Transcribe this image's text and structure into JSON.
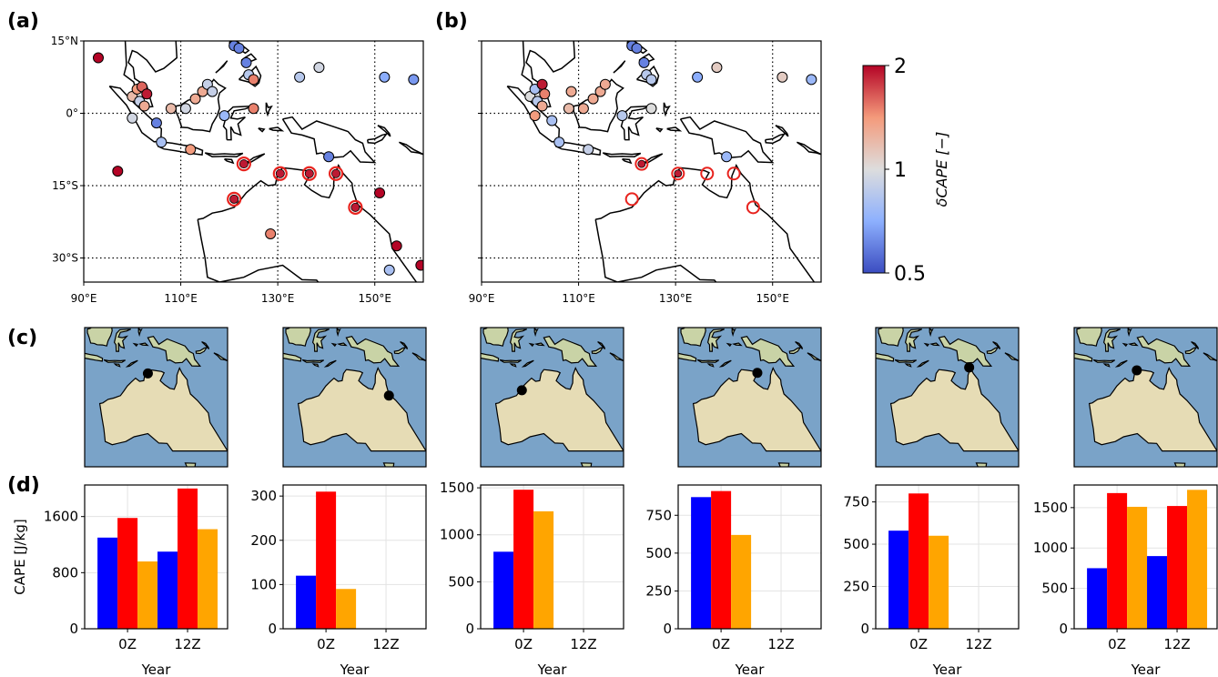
{
  "panel_labels": {
    "a": "(a)",
    "b": "(b)",
    "c": "(c)",
    "d": "(d)"
  },
  "colors": {
    "series": [
      "#0000ff",
      "#ff0000",
      "#ffa500"
    ],
    "ring": "#e8231e",
    "ocean": "#7aa3c8",
    "land": "#e6dcb5"
  },
  "colorbar": {
    "label": "δCAPE [−]",
    "ticks": [
      "2",
      "1",
      "0.5"
    ],
    "range": [
      0.5,
      2
    ],
    "colormap": "coolwarm"
  },
  "maps": {
    "lon_ticks": [
      "90°E",
      "110°E",
      "130°E",
      "150°E"
    ],
    "lat_ticks": [
      "15°N",
      "0°",
      "15°S",
      "30°S"
    ],
    "lon_range": [
      90,
      160
    ],
    "lat_range": [
      -35,
      15
    ],
    "a_points": [
      {
        "lon": 93,
        "lat": 11.5,
        "v": 2.0
      },
      {
        "lon": 100,
        "lat": 3.5,
        "v": 1.2
      },
      {
        "lon": 101,
        "lat": 5,
        "v": 1.4
      },
      {
        "lon": 102,
        "lat": 5.5,
        "v": 1.6
      },
      {
        "lon": 103,
        "lat": 4,
        "v": 1.9
      },
      {
        "lon": 101.5,
        "lat": 2.5,
        "v": 0.9
      },
      {
        "lon": 102.5,
        "lat": 1.5,
        "v": 1.3
      },
      {
        "lon": 100,
        "lat": -1,
        "v": 0.95
      },
      {
        "lon": 105,
        "lat": -2,
        "v": 0.6
      },
      {
        "lon": 106,
        "lat": -6,
        "v": 0.8
      },
      {
        "lon": 108,
        "lat": 1,
        "v": 1.2
      },
      {
        "lon": 112,
        "lat": -7.5,
        "v": 1.4
      },
      {
        "lon": 111,
        "lat": 1,
        "v": 0.95
      },
      {
        "lon": 113,
        "lat": 3,
        "v": 1.3
      },
      {
        "lon": 114.5,
        "lat": 4.5,
        "v": 1.3
      },
      {
        "lon": 115.5,
        "lat": 6,
        "v": 0.9
      },
      {
        "lon": 116.5,
        "lat": 4.5,
        "v": 0.9
      },
      {
        "lon": 119,
        "lat": -0.5,
        "v": 0.75
      },
      {
        "lon": 121,
        "lat": 14,
        "v": 0.6
      },
      {
        "lon": 122,
        "lat": 13.5,
        "v": 0.6
      },
      {
        "lon": 123.5,
        "lat": 10.5,
        "v": 0.6
      },
      {
        "lon": 124,
        "lat": 8,
        "v": 0.85
      },
      {
        "lon": 125,
        "lat": 7,
        "v": 1.5
      },
      {
        "lon": 125,
        "lat": 1,
        "v": 1.5
      },
      {
        "lon": 134.5,
        "lat": 7.5,
        "v": 0.85
      },
      {
        "lon": 138.5,
        "lat": 9.5,
        "v": 0.95
      },
      {
        "lon": 152,
        "lat": 7.5,
        "v": 0.7
      },
      {
        "lon": 158,
        "lat": 7,
        "v": 0.65
      },
      {
        "lon": 140.5,
        "lat": -9,
        "v": 0.6
      },
      {
        "lon": 97,
        "lat": -12,
        "v": 2.0
      },
      {
        "lon": 123,
        "lat": -10.5,
        "v": 1.9,
        "ring": true
      },
      {
        "lon": 130.5,
        "lat": -12.5,
        "v": 1.9,
        "ring": true
      },
      {
        "lon": 136.5,
        "lat": -12.5,
        "v": 1.9,
        "ring": true
      },
      {
        "lon": 142,
        "lat": -12.5,
        "v": 1.9,
        "ring": true
      },
      {
        "lon": 121,
        "lat": -17.8,
        "v": 1.9,
        "ring": true
      },
      {
        "lon": 146,
        "lat": -19.5,
        "v": 1.9,
        "ring": true
      },
      {
        "lon": 151,
        "lat": -16.5,
        "v": 2.0
      },
      {
        "lon": 128.5,
        "lat": -25,
        "v": 1.5
      },
      {
        "lon": 154.5,
        "lat": -27.5,
        "v": 2.0
      },
      {
        "lon": 153,
        "lat": -32.5,
        "v": 0.8
      },
      {
        "lon": 159.5,
        "lat": -31.5,
        "v": 2.0
      }
    ],
    "b_points": [
      {
        "lon": 100,
        "lat": 3.5,
        "v": 1.0
      },
      {
        "lon": 101,
        "lat": 5,
        "v": 0.8
      },
      {
        "lon": 102.5,
        "lat": 6,
        "v": 1.9
      },
      {
        "lon": 103,
        "lat": 4,
        "v": 1.5
      },
      {
        "lon": 101.5,
        "lat": 2.5,
        "v": 0.85
      },
      {
        "lon": 102.5,
        "lat": 1.5,
        "v": 1.3
      },
      {
        "lon": 101,
        "lat": -0.5,
        "v": 1.4
      },
      {
        "lon": 104.5,
        "lat": -1.5,
        "v": 0.8
      },
      {
        "lon": 106,
        "lat": -6,
        "v": 0.8
      },
      {
        "lon": 108,
        "lat": 1,
        "v": 1.2
      },
      {
        "lon": 108.5,
        "lat": 4.5,
        "v": 1.3
      },
      {
        "lon": 112,
        "lat": -7.5,
        "v": 0.9
      },
      {
        "lon": 111,
        "lat": 1,
        "v": 1.3
      },
      {
        "lon": 113,
        "lat": 3,
        "v": 1.3
      },
      {
        "lon": 114.5,
        "lat": 4.5,
        "v": 1.3
      },
      {
        "lon": 115.5,
        "lat": 6,
        "v": 1.3
      },
      {
        "lon": 119,
        "lat": -0.5,
        "v": 0.85
      },
      {
        "lon": 121,
        "lat": 14,
        "v": 0.6
      },
      {
        "lon": 122,
        "lat": 13.5,
        "v": 0.6
      },
      {
        "lon": 123.5,
        "lat": 10.5,
        "v": 0.6
      },
      {
        "lon": 124,
        "lat": 8,
        "v": 0.85
      },
      {
        "lon": 125,
        "lat": 7,
        "v": 0.85
      },
      {
        "lon": 125,
        "lat": 1,
        "v": 1.0
      },
      {
        "lon": 134.5,
        "lat": 7.5,
        "v": 0.7
      },
      {
        "lon": 138.5,
        "lat": 9.5,
        "v": 1.1
      },
      {
        "lon": 152,
        "lat": 7.5,
        "v": 1.1
      },
      {
        "lon": 158,
        "lat": 7,
        "v": 0.75
      },
      {
        "lon": 140.5,
        "lat": -9,
        "v": 0.75
      },
      {
        "lon": 123,
        "lat": -10.5,
        "v": 1.9,
        "ring": true
      },
      {
        "lon": 130.5,
        "lat": -12.5,
        "v": 1.9,
        "ring": true
      },
      {
        "lon": 136.5,
        "lat": -12.5,
        "v": 1.3,
        "ring": true
      },
      {
        "lon": 142,
        "lat": -12.5,
        "v": 1.3,
        "ring": true
      },
      {
        "lon": 121,
        "lat": -17.8,
        "v": 1.3,
        "ring": true
      },
      {
        "lon": 146,
        "lat": -19.5,
        "v": 1.3,
        "ring": true
      }
    ]
  },
  "chart_data": [
    {
      "type": "bar",
      "categories": [
        "0Z",
        "12Z"
      ],
      "xlabel": "Year",
      "ylabel": "CAPE [J/kg]",
      "ylim": [
        0,
        2050
      ],
      "yticks": [
        0,
        800,
        1600
      ],
      "series": [
        {
          "values": [
            1300,
            1100
          ]
        },
        {
          "values": [
            1580,
            2000
          ]
        },
        {
          "values": [
            960,
            1420
          ]
        }
      ]
    },
    {
      "type": "bar",
      "categories": [
        "0Z",
        "12Z"
      ],
      "xlabel": "Year",
      "ylabel": "",
      "ylim": [
        0,
        325
      ],
      "yticks": [
        0,
        100,
        200,
        300
      ],
      "series": [
        {
          "values": [
            120,
            null
          ]
        },
        {
          "values": [
            310,
            null
          ]
        },
        {
          "values": [
            90,
            null
          ]
        }
      ]
    },
    {
      "type": "bar",
      "categories": [
        "0Z",
        "12Z"
      ],
      "xlabel": "Year",
      "ylabel": "",
      "ylim": [
        0,
        1530
      ],
      "yticks": [
        0,
        500,
        1000,
        1500
      ],
      "series": [
        {
          "values": [
            820,
            null
          ]
        },
        {
          "values": [
            1480,
            null
          ]
        },
        {
          "values": [
            1250,
            null
          ]
        }
      ]
    },
    {
      "type": "bar",
      "categories": [
        "0Z",
        "12Z"
      ],
      "xlabel": "Year",
      "ylabel": "",
      "ylim": [
        0,
        950
      ],
      "yticks": [
        0,
        250,
        500,
        750
      ],
      "series": [
        {
          "values": [
            870,
            null
          ]
        },
        {
          "values": [
            910,
            null
          ]
        },
        {
          "values": [
            620,
            null
          ]
        }
      ]
    },
    {
      "type": "bar",
      "categories": [
        "0Z",
        "12Z"
      ],
      "xlabel": "Year",
      "ylabel": "",
      "ylim": [
        0,
        850
      ],
      "yticks": [
        0,
        250,
        500,
        750
      ],
      "series": [
        {
          "values": [
            580,
            null
          ]
        },
        {
          "values": [
            800,
            null
          ]
        },
        {
          "values": [
            550,
            null
          ]
        }
      ]
    },
    {
      "type": "bar",
      "categories": [
        "0Z",
        "12Z"
      ],
      "xlabel": "Year",
      "ylabel": "",
      "ylim": [
        0,
        1780
      ],
      "yticks": [
        0,
        500,
        1000,
        1500
      ],
      "series": [
        {
          "values": [
            750,
            900
          ]
        },
        {
          "values": [
            1680,
            1520
          ]
        },
        {
          "values": [
            1510,
            1720
          ]
        }
      ]
    }
  ],
  "station_maps": [
    {
      "lon": 131,
      "lat": -12.5
    },
    {
      "lon": 146.5,
      "lat": -19.5
    },
    {
      "lon": 123,
      "lat": -17.8
    },
    {
      "lon": 136.8,
      "lat": -12.3
    },
    {
      "lon": 142,
      "lat": -10.6
    },
    {
      "lon": 130.8,
      "lat": -11.5
    }
  ]
}
